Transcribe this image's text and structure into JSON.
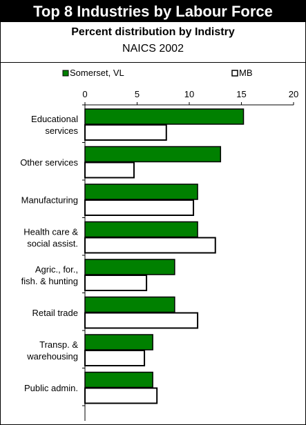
{
  "chart_data": {
    "type": "bar",
    "title": "Top 8 Industries by Labour Force",
    "subtitle": "Percent distribution by Indistry",
    "subtitle2": "NAICS 2002",
    "xlabel": "",
    "ylabel": "",
    "orientation": "horizontal",
    "xlim": [
      0,
      20
    ],
    "ticks": [
      0,
      5,
      10,
      15,
      20
    ],
    "legend_position": "top",
    "categories": [
      [
        "Educational",
        "services"
      ],
      [
        "Other services"
      ],
      [
        "Manufacturing"
      ],
      [
        "Health care &",
        "social assist."
      ],
      [
        "Agric., for.,",
        "fish. & hunting"
      ],
      [
        "Retail trade"
      ],
      [
        "Transp. &",
        "warehousing"
      ],
      [
        "Public admin."
      ]
    ],
    "series": [
      {
        "name": "Somerset, VL",
        "color": "#008000",
        "values": [
          15.2,
          13.0,
          10.8,
          10.8,
          8.6,
          8.6,
          6.5,
          6.5
        ]
      },
      {
        "name": "MB",
        "color": "#ffffff",
        "values": [
          7.8,
          4.7,
          10.4,
          12.5,
          5.9,
          10.8,
          5.7,
          6.9
        ]
      }
    ]
  }
}
